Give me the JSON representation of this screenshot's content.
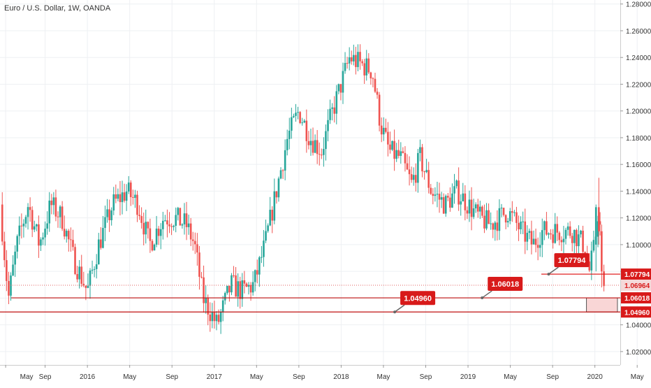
{
  "chart_data": {
    "type": "candlestick",
    "title": "Euro / U.S. Dollar, 1W, OANDA",
    "x_axis": {
      "labels": [
        "May",
        "Sep",
        "2016",
        "May",
        "Sep",
        "2017",
        "May",
        "Sep",
        "2018",
        "May",
        "Sep",
        "2019",
        "May",
        "Sep",
        "2020",
        "May"
      ],
      "label_x": [
        0.01,
        0.08,
        0.155,
        0.23,
        0.305,
        0.38,
        0.455,
        0.53,
        0.605,
        0.68,
        0.755,
        0.83,
        0.905,
        0.98,
        1.055,
        1.13
      ]
    },
    "y_axis": {
      "min": 1.01,
      "max": 1.283,
      "ticks": [
        "1.28000",
        "1.26000",
        "1.24000",
        "1.22000",
        "1.20000",
        "1.18000",
        "1.16000",
        "1.14000",
        "1.12000",
        "1.10000",
        "1.08000",
        "1.06000",
        "1.04000",
        "1.02000"
      ],
      "tick_values": [
        1.28,
        1.26,
        1.24,
        1.22,
        1.2,
        1.18,
        1.16,
        1.14,
        1.12,
        1.1,
        1.08,
        1.06,
        1.04,
        1.02
      ]
    },
    "anchors": [
      [
        0.0,
        1.13
      ],
      [
        0.015,
        1.06
      ],
      [
        0.03,
        1.1
      ],
      [
        0.05,
        1.13
      ],
      [
        0.07,
        1.1
      ],
      [
        0.09,
        1.13
      ],
      [
        0.11,
        1.12
      ],
      [
        0.13,
        1.09
      ],
      [
        0.155,
        1.065
      ],
      [
        0.175,
        1.1
      ],
      [
        0.2,
        1.13
      ],
      [
        0.225,
        1.14
      ],
      [
        0.245,
        1.13
      ],
      [
        0.265,
        1.1
      ],
      [
        0.29,
        1.12
      ],
      [
        0.31,
        1.12
      ],
      [
        0.33,
        1.115
      ],
      [
        0.345,
        1.1
      ],
      [
        0.36,
        1.06
      ],
      [
        0.385,
        1.04
      ],
      [
        0.41,
        1.07
      ],
      [
        0.43,
        1.065
      ],
      [
        0.45,
        1.07
      ],
      [
        0.47,
        1.1
      ],
      [
        0.49,
        1.14
      ],
      [
        0.51,
        1.18
      ],
      [
        0.53,
        1.2
      ],
      [
        0.55,
        1.18
      ],
      [
        0.57,
        1.17
      ],
      [
        0.59,
        1.2
      ],
      [
        0.605,
        1.22
      ],
      [
        0.62,
        1.24
      ],
      [
        0.64,
        1.235
      ],
      [
        0.66,
        1.23
      ],
      [
        0.675,
        1.19
      ],
      [
        0.69,
        1.17
      ],
      [
        0.71,
        1.165
      ],
      [
        0.73,
        1.145
      ],
      [
        0.745,
        1.165
      ],
      [
        0.765,
        1.14
      ],
      [
        0.79,
        1.13
      ],
      [
        0.81,
        1.14
      ],
      [
        0.83,
        1.13
      ],
      [
        0.85,
        1.12
      ],
      [
        0.87,
        1.115
      ],
      [
        0.9,
        1.125
      ],
      [
        0.925,
        1.11
      ],
      [
        0.945,
        1.1
      ],
      [
        0.96,
        1.11
      ],
      [
        0.99,
        1.11
      ],
      [
        1.015,
        1.11
      ],
      [
        1.035,
        1.1
      ],
      [
        1.045,
        1.08
      ],
      [
        1.055,
        1.1
      ],
      [
        1.06,
        1.125
      ],
      [
        1.065,
        1.11
      ],
      [
        1.07,
        1.07
      ],
      [
        1.072,
        1.069
      ]
    ],
    "horizontal_levels": [
      {
        "value": 1.07794,
        "label": "1.07794",
        "line_color": "#e02020",
        "style": "solid",
        "x_start": 0.96
      },
      {
        "value": 1.06964,
        "label": "1.06964",
        "line_color": "#e06060",
        "style": "dotted",
        "x_start": 0.0
      },
      {
        "value": 1.06018,
        "label": "1.06018",
        "line_color": "#c01010",
        "style": "solid",
        "x_start": 0.02
      },
      {
        "value": 1.0496,
        "label": "1.04960",
        "line_color": "#c01010",
        "style": "solid",
        "x_start": 0.0
      }
    ],
    "callouts": [
      {
        "label": "1.04960",
        "value": 1.0496,
        "x": 0.7
      },
      {
        "label": "1.06018",
        "value": 1.06018,
        "x": 0.855
      },
      {
        "label": "1.07794",
        "value": 1.07794,
        "x": 0.973
      }
    ],
    "current_price_box": {
      "label": "1.06964",
      "value": 1.06964
    },
    "shaded_region": {
      "from": 1.0496,
      "to": 1.06018,
      "x_start": 1.04,
      "x_end": 1.095
    },
    "colors": {
      "up": "#26a69a",
      "down": "#ef5350",
      "level_red": "#d81a1a",
      "label_bg": "#d81a1a",
      "current_box_bg": "#f5d9d9",
      "current_box_text": "#d81a1a",
      "shade_fill": "#f9d6d6",
      "grid": "#eef0f3"
    }
  }
}
